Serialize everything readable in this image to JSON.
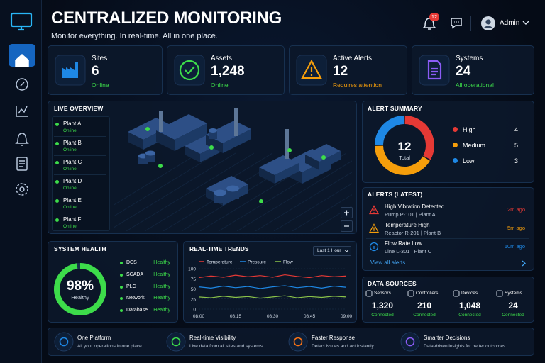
{
  "header": {
    "title": "CENTRALIZED MONITORING",
    "subtitle": "Monitor everything. In real-time. All in one place.",
    "notifications": "12",
    "user": "Admin"
  },
  "stats": [
    {
      "label": "Sites",
      "value": "6",
      "status": "Online",
      "color": "#1e88e5",
      "status_color": "#3ddc4a"
    },
    {
      "label": "Assets",
      "value": "1,248",
      "status": "Online",
      "color": "#3ddc4a",
      "status_color": "#3ddc4a"
    },
    {
      "label": "Active Alerts",
      "value": "12",
      "status": "Requires attention",
      "color": "#f59e0b",
      "status_color": "#f59e0b"
    },
    {
      "label": "Systems",
      "value": "24",
      "status": "All operational",
      "color": "#8b5cf6",
      "status_color": "#3ddc4a"
    }
  ],
  "live_overview": {
    "title": "LIVE OVERVIEW",
    "plants": [
      {
        "name": "Plant A",
        "status": "Online"
      },
      {
        "name": "Plant B",
        "status": "Online"
      },
      {
        "name": "Plant C",
        "status": "Online"
      },
      {
        "name": "Plant D",
        "status": "Online"
      },
      {
        "name": "Plant E",
        "status": "Online"
      },
      {
        "name": "Plant F",
        "status": "Online"
      }
    ]
  },
  "alert_summary": {
    "title": "ALERT SUMMARY",
    "total": "12",
    "total_label": "Total",
    "levels": [
      {
        "name": "High",
        "count": 4,
        "color": "#e53935"
      },
      {
        "name": "Medium",
        "count": 5,
        "color": "#f59e0b"
      },
      {
        "name": "Low",
        "count": 3,
        "color": "#1e88e5"
      }
    ]
  },
  "alerts_latest": {
    "title": "ALERTS (LATEST)",
    "items": [
      {
        "title": "High Vibration Detected",
        "detail": "Pump P-101 | Plant A",
        "time": "2m ago",
        "color": "#e53935"
      },
      {
        "title": "Temperature High",
        "detail": "Reactor R-201 | Plant B",
        "time": "5m ago",
        "color": "#f59e0b"
      },
      {
        "title": "Flow Rate Low",
        "detail": "Line L-301 | Plant C",
        "time": "10m ago",
        "color": "#1e88e5"
      }
    ],
    "link": "View all alerts"
  },
  "system_health": {
    "title": "SYSTEM HEALTH",
    "percent": 98,
    "percent_label": "98%",
    "caption": "Healthy",
    "color": "#3ddc4a",
    "systems": [
      {
        "name": "DCS",
        "status": "Healthy"
      },
      {
        "name": "SCADA",
        "status": "Healthy"
      },
      {
        "name": "PLC",
        "status": "Healthy"
      },
      {
        "name": "Network",
        "status": "Healthy"
      },
      {
        "name": "Database",
        "status": "Healthy"
      }
    ]
  },
  "chart_data": {
    "type": "line",
    "title": "REAL-TIME TRENDS",
    "range_selector": "Last 1 Hour",
    "x": [
      "08:00",
      "08:05",
      "08:10",
      "08:15",
      "08:20",
      "08:25",
      "08:30",
      "08:35",
      "08:40",
      "08:45",
      "08:50",
      "08:55",
      "09:00"
    ],
    "series": [
      {
        "name": "Temperature",
        "color": "#e53935",
        "values": [
          78,
          82,
          79,
          84,
          80,
          83,
          79,
          85,
          81,
          78,
          83,
          80,
          82
        ]
      },
      {
        "name": "Pressure",
        "color": "#1e88e5",
        "values": [
          55,
          52,
          57,
          53,
          56,
          51,
          55,
          58,
          53,
          56,
          52,
          57,
          54
        ]
      },
      {
        "name": "Flow",
        "color": "#8bc34a",
        "values": [
          30,
          28,
          32,
          29,
          31,
          27,
          30,
          33,
          28,
          31,
          29,
          32,
          30
        ]
      }
    ],
    "ylim": [
      0,
      100
    ],
    "yticks": [
      0,
      25,
      50,
      75,
      100
    ],
    "xticks": [
      "08:00",
      "08:15",
      "08:30",
      "08:45",
      "09:00"
    ],
    "grid": true
  },
  "data_sources": {
    "title": "DATA SOURCES",
    "items": [
      {
        "label": "Sensors",
        "value": "1,320",
        "status": "Connected"
      },
      {
        "label": "Controllers",
        "value": "210",
        "status": "Connected"
      },
      {
        "label": "Devices",
        "value": "1,048",
        "status": "Connected"
      },
      {
        "label": "Systems",
        "value": "24",
        "status": "Connected"
      }
    ]
  },
  "features": [
    {
      "title": "One Platform",
      "text": "All your operations in one place",
      "color": "#1e88e5"
    },
    {
      "title": "Real-time Visibility",
      "text": "Live data from all sites and systems",
      "color": "#3ddc4a"
    },
    {
      "title": "Faster Response",
      "text": "Detect issues and act instantly",
      "color": "#f97316"
    },
    {
      "title": "Smarter Decisions",
      "text": "Data-driven insights for better outcomes",
      "color": "#8b5cf6"
    }
  ]
}
